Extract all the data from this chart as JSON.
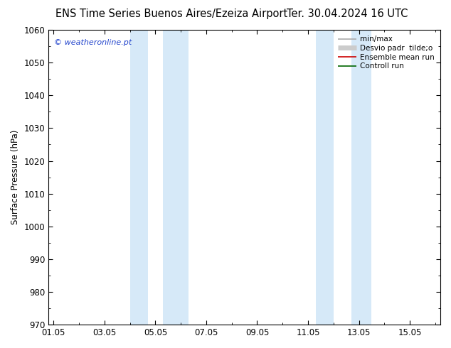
{
  "title_left": "ENS Time Series Buenos Aires/Ezeiza Airport",
  "title_right": "Ter. 30.04.2024 16 UTC",
  "ylabel": "Surface Pressure (hPa)",
  "ylim": [
    970,
    1060
  ],
  "yticks": [
    970,
    980,
    990,
    1000,
    1010,
    1020,
    1030,
    1040,
    1050,
    1060
  ],
  "xtick_labels": [
    "01.05",
    "03.05",
    "05.05",
    "07.05",
    "09.05",
    "11.05",
    "13.05",
    "15.05"
  ],
  "xtick_positions": [
    0,
    2,
    4,
    6,
    8,
    10,
    12,
    14
  ],
  "xlim": [
    -0.2,
    15.2
  ],
  "shade_bands": [
    {
      "xmin": 3.0,
      "xmax": 3.7
    },
    {
      "xmin": 4.3,
      "xmax": 5.3
    },
    {
      "xmin": 10.3,
      "xmax": 11.0
    },
    {
      "xmin": 11.7,
      "xmax": 12.5
    }
  ],
  "shade_color": "#d6e9f8",
  "background_color": "#ffffff",
  "watermark": "© weatheronline.pt",
  "watermark_color": "#2244cc",
  "legend_entries": [
    {
      "label": "min/max",
      "color": "#aaaaaa",
      "linewidth": 1.2
    },
    {
      "label": "Desvio padr  tilde;o",
      "color": "#cccccc",
      "linewidth": 5
    },
    {
      "label": "Ensemble mean run",
      "color": "#cc0000",
      "linewidth": 1.2
    },
    {
      "label": "Controll run",
      "color": "#006600",
      "linewidth": 1.2
    }
  ],
  "title_fontsize": 10.5,
  "tick_fontsize": 8.5,
  "ylabel_fontsize": 8.5,
  "watermark_fontsize": 8
}
